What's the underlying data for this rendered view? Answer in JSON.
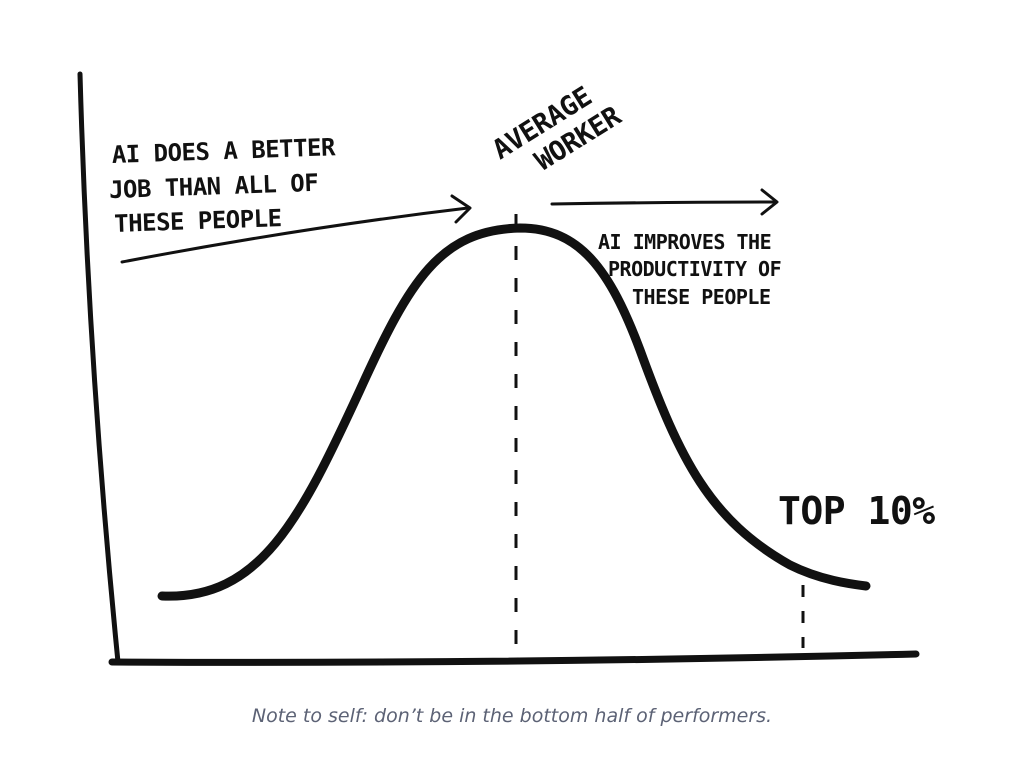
{
  "diagram": {
    "peak_label": [
      "AVERAGE",
      "WORKER"
    ],
    "left_note": [
      "AI DOES A BETTER",
      "JOB THAN ALL OF",
      "THESE PEOPLE"
    ],
    "right_note": [
      "AI IMPROVES THE",
      "PRODUCTIVITY OF",
      "THESE PEOPLE"
    ],
    "tail_label": "TOP 10%",
    "ink_color": "#111111"
  },
  "caption": "Note to self: don’t be in the bottom half of performers.",
  "caption_color": "#5c6275"
}
